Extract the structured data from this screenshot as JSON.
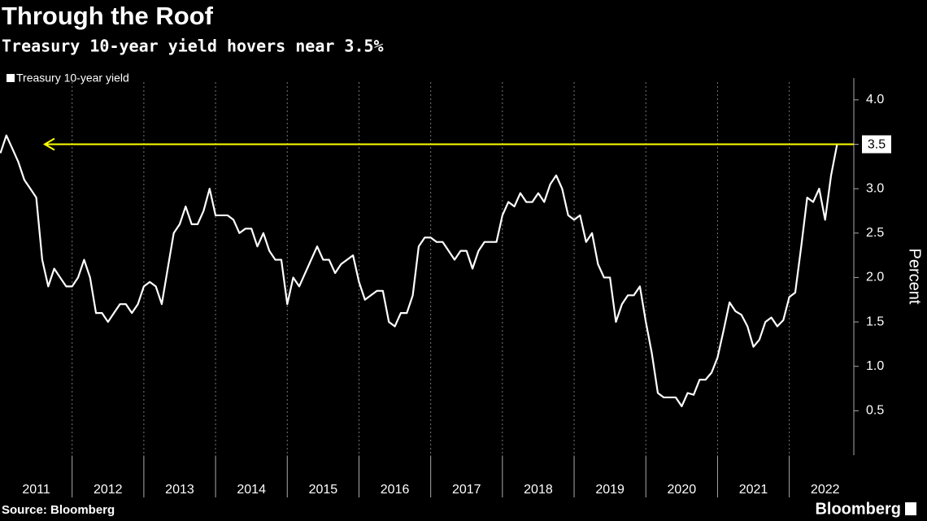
{
  "chart_data": {
    "type": "line",
    "title": "Through the Roof",
    "subtitle": "Treasury 10-year yield hovers near 3.5%",
    "y_axis_label": "Percent",
    "source": "Source: Bloomberg",
    "brand": "Bloomberg",
    "xlim": [
      2011.0,
      2022.9
    ],
    "ylim": [
      0,
      4.2
    ],
    "yticks": [
      {
        "value": 0.5,
        "label": "0.5"
      },
      {
        "value": 1,
        "label": "1.0"
      },
      {
        "value": 1.5,
        "label": "1.5"
      },
      {
        "value": 2,
        "label": "2.0"
      },
      {
        "value": 2.5,
        "label": "2.5"
      },
      {
        "value": 3,
        "label": "3.0"
      },
      {
        "value": 3.5,
        "label": "3.5"
      },
      {
        "value": 4,
        "label": "4.0"
      }
    ],
    "xticks": [
      {
        "value": 2011.5,
        "label": "2011"
      },
      {
        "value": 2012.5,
        "label": "2012"
      },
      {
        "value": 2013.5,
        "label": "2013"
      },
      {
        "value": 2014.5,
        "label": "2014"
      },
      {
        "value": 2015.5,
        "label": "2015"
      },
      {
        "value": 2016.5,
        "label": "2016"
      },
      {
        "value": 2017.5,
        "label": "2017"
      },
      {
        "value": 2018.5,
        "label": "2018"
      },
      {
        "value": 2019.5,
        "label": "2019"
      },
      {
        "value": 2020.5,
        "label": "2020"
      },
      {
        "value": 2021.5,
        "label": "2021"
      },
      {
        "value": 2022.5,
        "label": "2022"
      }
    ],
    "grid": "vertical",
    "reference_line": {
      "value": 3.5,
      "color": "#ffff00"
    },
    "x": [
      2011,
      2011.083,
      2011.167,
      2011.25,
      2011.333,
      2011.417,
      2011.5,
      2011.583,
      2011.667,
      2011.75,
      2011.833,
      2011.917,
      2012,
      2012.083,
      2012.167,
      2012.25,
      2012.333,
      2012.417,
      2012.5,
      2012.583,
      2012.667,
      2012.75,
      2012.833,
      2012.917,
      2013,
      2013.083,
      2013.167,
      2013.25,
      2013.333,
      2013.417,
      2013.5,
      2013.583,
      2013.667,
      2013.75,
      2013.833,
      2013.917,
      2014,
      2014.083,
      2014.167,
      2014.25,
      2014.333,
      2014.417,
      2014.5,
      2014.583,
      2014.667,
      2014.75,
      2014.833,
      2014.917,
      2015,
      2015.083,
      2015.167,
      2015.25,
      2015.333,
      2015.417,
      2015.5,
      2015.583,
      2015.667,
      2015.75,
      2015.833,
      2015.917,
      2016,
      2016.083,
      2016.167,
      2016.25,
      2016.333,
      2016.417,
      2016.5,
      2016.583,
      2016.667,
      2016.75,
      2016.833,
      2016.917,
      2017,
      2017.083,
      2017.167,
      2017.25,
      2017.333,
      2017.417,
      2017.5,
      2017.583,
      2017.667,
      2017.75,
      2017.833,
      2017.917,
      2018,
      2018.083,
      2018.167,
      2018.25,
      2018.333,
      2018.417,
      2018.5,
      2018.583,
      2018.667,
      2018.75,
      2018.833,
      2018.917,
      2019,
      2019.083,
      2019.167,
      2019.25,
      2019.333,
      2019.417,
      2019.5,
      2019.583,
      2019.667,
      2019.75,
      2019.833,
      2019.917,
      2020,
      2020.083,
      2020.167,
      2020.25,
      2020.333,
      2020.417,
      2020.5,
      2020.583,
      2020.667,
      2020.75,
      2020.833,
      2020.917,
      2021,
      2021.083,
      2021.167,
      2021.25,
      2021.333,
      2021.417,
      2021.5,
      2021.583,
      2021.667,
      2021.75,
      2021.833,
      2021.917,
      2022,
      2022.083,
      2022.167,
      2022.25,
      2022.333,
      2022.417,
      2022.5,
      2022.583,
      2022.667
    ],
    "series": [
      {
        "name": "Treasury 10-year yield",
        "color": "#ffffff",
        "values": [
          3.4,
          3.6,
          3.45,
          3.3,
          3.1,
          3.0,
          2.9,
          2.2,
          1.9,
          2.1,
          2.0,
          1.9,
          1.9,
          2.0,
          2.2,
          2.0,
          1.6,
          1.6,
          1.5,
          1.6,
          1.7,
          1.7,
          1.6,
          1.7,
          1.9,
          1.95,
          1.9,
          1.7,
          2.1,
          2.5,
          2.6,
          2.8,
          2.6,
          2.6,
          2.75,
          3.0,
          2.7,
          2.7,
          2.7,
          2.65,
          2.5,
          2.55,
          2.55,
          2.35,
          2.5,
          2.3,
          2.2,
          2.2,
          1.7,
          2.0,
          1.9,
          2.05,
          2.2,
          2.35,
          2.2,
          2.2,
          2.05,
          2.15,
          2.2,
          2.25,
          1.95,
          1.75,
          1.8,
          1.85,
          1.85,
          1.5,
          1.45,
          1.6,
          1.6,
          1.8,
          2.35,
          2.45,
          2.45,
          2.4,
          2.4,
          2.3,
          2.2,
          2.3,
          2.3,
          2.1,
          2.3,
          2.4,
          2.4,
          2.4,
          2.7,
          2.85,
          2.8,
          2.95,
          2.85,
          2.85,
          2.95,
          2.85,
          3.05,
          3.15,
          3.0,
          2.7,
          2.65,
          2.7,
          2.4,
          2.5,
          2.15,
          2.0,
          2.0,
          1.5,
          1.7,
          1.8,
          1.8,
          1.9,
          1.5,
          1.15,
          0.7,
          0.65,
          0.65,
          0.65,
          0.55,
          0.7,
          0.68,
          0.85,
          0.85,
          0.93,
          1.1,
          1.4,
          1.72,
          1.62,
          1.58,
          1.45,
          1.22,
          1.3,
          1.5,
          1.55,
          1.45,
          1.52,
          1.78,
          1.83,
          2.35,
          2.9,
          2.85,
          3.0,
          2.65,
          3.15,
          3.5
        ]
      }
    ]
  }
}
